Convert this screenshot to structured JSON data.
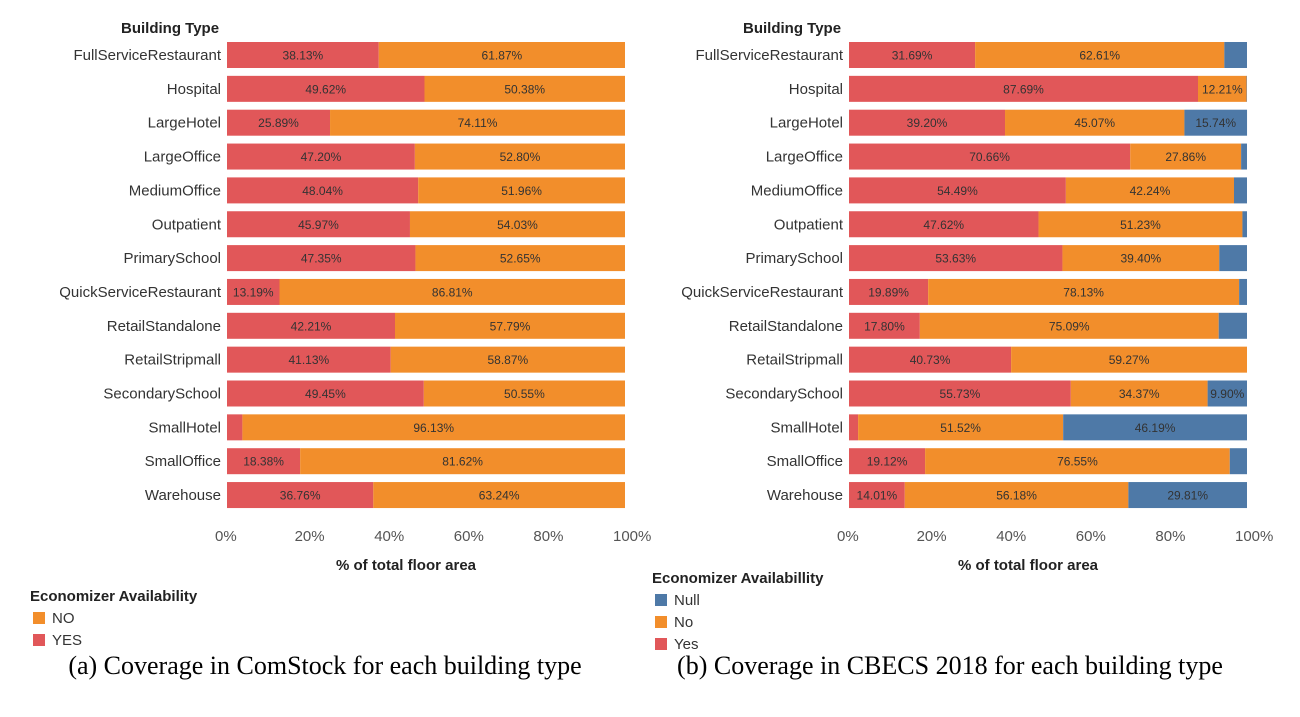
{
  "captions": {
    "a": "(a) Coverage in ComStock for each building type",
    "b": "(b) Coverage in CBECS 2018 for each building type"
  },
  "chart_data": [
    {
      "type": "bar",
      "orientation": "horizontal",
      "stacked": true,
      "row_header": "Building Type",
      "categories": [
        "FullServiceRestaurant",
        "Hospital",
        "LargeHotel",
        "LargeOffice",
        "MediumOffice",
        "Outpatient",
        "PrimarySchool",
        "QuickServiceRestaurant",
        "RetailStandalone",
        "RetailStripmall",
        "SecondarySchool",
        "SmallHotel",
        "SmallOffice",
        "Warehouse"
      ],
      "series": [
        {
          "name": "YES",
          "color": "#E15759",
          "values": [
            38.13,
            49.62,
            25.89,
            47.2,
            48.04,
            45.97,
            47.35,
            13.19,
            42.21,
            41.13,
            49.45,
            3.87,
            18.38,
            36.76
          ],
          "labels": [
            "38.13%",
            "49.62%",
            "25.89%",
            "47.20%",
            "48.04%",
            "45.97%",
            "47.35%",
            "13.19%",
            "42.21%",
            "41.13%",
            "49.45%",
            "",
            "18.38%",
            "36.76%"
          ]
        },
        {
          "name": "NO",
          "color": "#F28E2B",
          "values": [
            61.87,
            50.38,
            74.11,
            52.8,
            51.96,
            54.03,
            52.65,
            86.81,
            57.79,
            58.87,
            50.55,
            96.13,
            81.62,
            63.24
          ],
          "labels": [
            "61.87%",
            "50.38%",
            "74.11%",
            "52.80%",
            "51.96%",
            "54.03%",
            "52.65%",
            "86.81%",
            "57.79%",
            "58.87%",
            "50.55%",
            "96.13%",
            "81.62%",
            "63.24%"
          ]
        }
      ],
      "xlabel": "% of total floor area",
      "xlim": [
        0,
        100
      ],
      "xticks": [
        "0%",
        "20%",
        "40%",
        "60%",
        "80%",
        "100%"
      ],
      "grid": false,
      "legend": {
        "title": "Economizer Availability",
        "position": "bottom-left",
        "entries": [
          {
            "name": "NO",
            "color": "#F28E2B"
          },
          {
            "name": "YES",
            "color": "#E15759"
          }
        ]
      }
    },
    {
      "type": "bar",
      "orientation": "horizontal",
      "stacked": true,
      "row_header": "Building Type",
      "categories": [
        "FullServiceRestaurant",
        "Hospital",
        "LargeHotel",
        "LargeOffice",
        "MediumOffice",
        "Outpatient",
        "PrimarySchool",
        "QuickServiceRestaurant",
        "RetailStandalone",
        "RetailStripmall",
        "SecondarySchool",
        "SmallHotel",
        "SmallOffice",
        "Warehouse"
      ],
      "series": [
        {
          "name": "Yes",
          "color": "#E15759",
          "values": [
            31.69,
            87.69,
            39.2,
            70.66,
            54.49,
            47.62,
            53.63,
            19.89,
            17.8,
            40.73,
            55.73,
            2.29,
            19.12,
            14.01
          ],
          "labels": [
            "31.69%",
            "87.69%",
            "39.20%",
            "70.66%",
            "54.49%",
            "47.62%",
            "53.63%",
            "19.89%",
            "17.80%",
            "40.73%",
            "55.73%",
            "",
            "19.12%",
            "14.01%"
          ]
        },
        {
          "name": "No",
          "color": "#F28E2B",
          "values": [
            62.61,
            12.21,
            45.07,
            27.86,
            42.24,
            51.23,
            39.4,
            78.13,
            75.09,
            59.27,
            34.37,
            51.52,
            76.55,
            56.18
          ],
          "labels": [
            "62.61%",
            "12.21%",
            "45.07%",
            "27.86%",
            "42.24%",
            "51.23%",
            "39.40%",
            "78.13%",
            "75.09%",
            "59.27%",
            "34.37%",
            "51.52%",
            "76.55%",
            "56.18%"
          ]
        },
        {
          "name": "Null",
          "color": "#4E79A7",
          "values": [
            5.7,
            0.1,
            15.74,
            1.48,
            3.27,
            1.15,
            6.97,
            1.98,
            7.11,
            0,
            9.9,
            46.19,
            4.33,
            29.81
          ],
          "labels": [
            "",
            "",
            "15.74%",
            "",
            "",
            "",
            "",
            "",
            "",
            "",
            "9.90%",
            "46.19%",
            "",
            "29.81%"
          ]
        }
      ],
      "xlabel": "% of total floor area",
      "xlim": [
        0,
        100
      ],
      "xticks": [
        "0%",
        "20%",
        "40%",
        "60%",
        "80%",
        "100%"
      ],
      "grid": false,
      "legend": {
        "title": "Economizer Availabillity",
        "position": "bottom-left",
        "entries": [
          {
            "name": "Null",
            "color": "#4E79A7"
          },
          {
            "name": "No",
            "color": "#F28E2B"
          },
          {
            "name": "Yes",
            "color": "#E15759"
          }
        ]
      }
    }
  ]
}
